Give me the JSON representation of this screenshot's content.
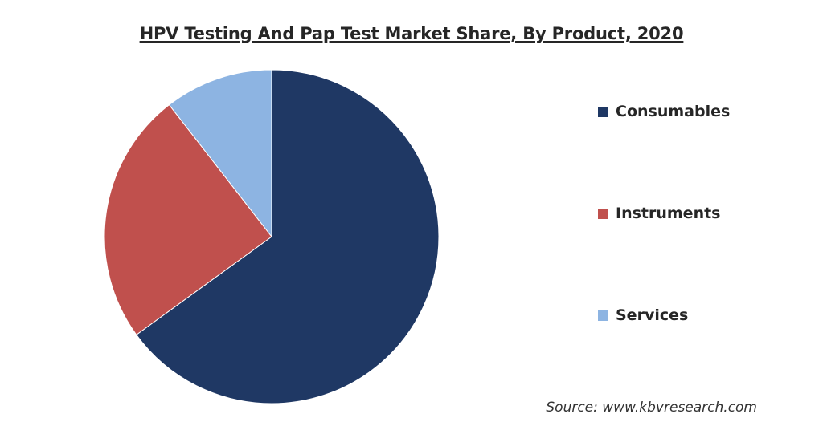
{
  "title": "HPV Testing And Pap Test Market Share, By Product, 2020",
  "source": "Source: www.kbvresearch.com",
  "chart_data": {
    "type": "pie",
    "title": "HPV Testing And Pap Test Market Share, By Product, 2020",
    "legend_position": "right",
    "slices": [
      {
        "name": "Consumables",
        "value": 65,
        "color": "#1f3864"
      },
      {
        "name": "Instruments",
        "value": 24.5,
        "color": "#c0504d"
      },
      {
        "name": "Services",
        "value": 10.5,
        "color": "#8db4e2"
      }
    ]
  }
}
